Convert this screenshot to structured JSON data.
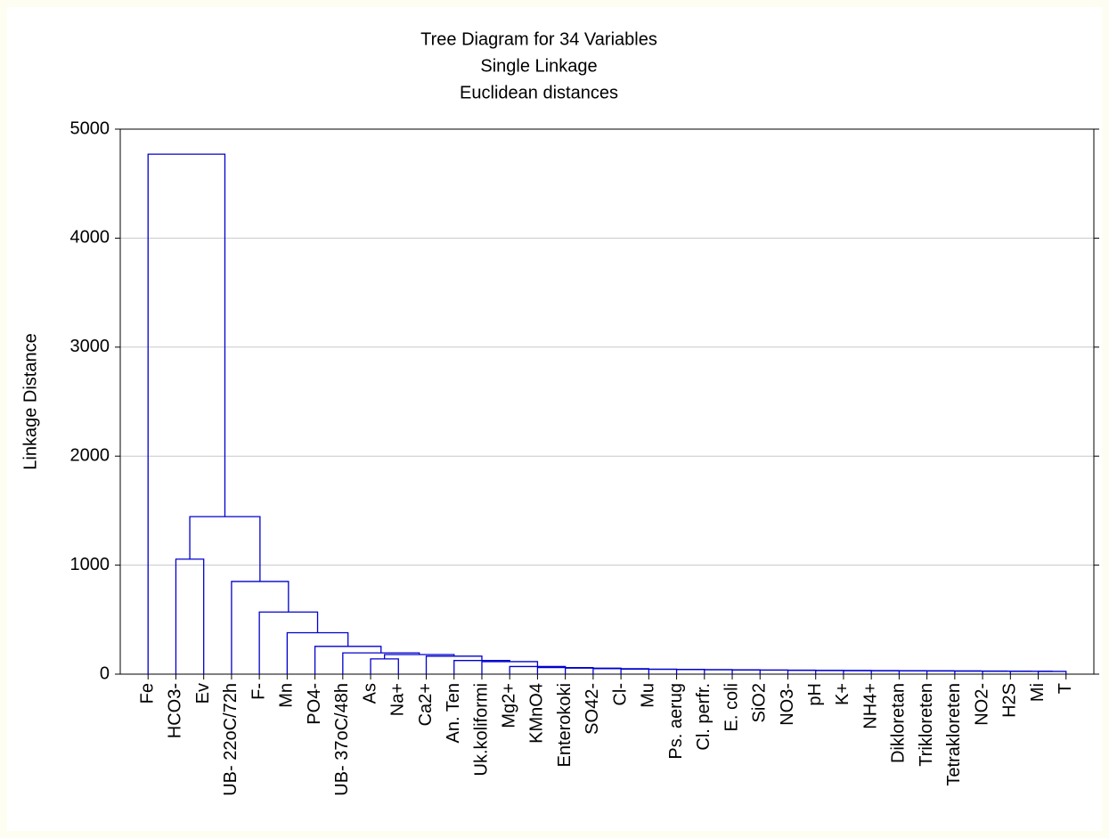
{
  "chart_data": {
    "type": "dendrogram",
    "title": "Tree Diagram for 34 Variables",
    "subtitle": [
      "Single Linkage",
      "Euclidean distances"
    ],
    "y_label": "Linkage Distance",
    "categories": [
      "Fe",
      "HCO3-",
      "Ev",
      "UB- 22oC/72h",
      "F-",
      "Mn",
      "PO4-",
      "UB- 37oC/48h",
      "As",
      "Na+",
      "Ca2+",
      "An. Ten",
      "Uk.koliformi",
      "Mg2+",
      "KMnO4",
      "Enterokoki",
      "SO42-",
      "Cl-",
      "Mu",
      "Ps. aerug",
      "Cl. perfr.",
      "E. coli",
      "SiO2",
      "NO3-",
      "pH",
      "K+",
      "NH4+",
      "Dikloretan",
      "Trikloreten",
      "Tetrakloreten",
      "NO2-",
      "H2S",
      "Mi",
      "T"
    ],
    "merges": [
      {
        "left": 32,
        "right": 33,
        "height": 25
      },
      {
        "left": 31,
        "right": 34,
        "height": 26
      },
      {
        "left": 30,
        "right": 35,
        "height": 27
      },
      {
        "left": 29,
        "right": 36,
        "height": 28
      },
      {
        "left": 28,
        "right": 37,
        "height": 29
      },
      {
        "left": 27,
        "right": 38,
        "height": 30
      },
      {
        "left": 26,
        "right": 39,
        "height": 31
      },
      {
        "left": 25,
        "right": 40,
        "height": 32
      },
      {
        "left": 24,
        "right": 41,
        "height": 33
      },
      {
        "left": 23,
        "right": 42,
        "height": 35
      },
      {
        "left": 22,
        "right": 43,
        "height": 37
      },
      {
        "left": 21,
        "right": 44,
        "height": 38
      },
      {
        "left": 20,
        "right": 45,
        "height": 40
      },
      {
        "left": 19,
        "right": 46,
        "height": 42
      },
      {
        "left": 18,
        "right": 47,
        "height": 44
      },
      {
        "left": 17,
        "right": 48,
        "height": 46
      },
      {
        "left": 16,
        "right": 49,
        "height": 50
      },
      {
        "left": 15,
        "right": 50,
        "height": 55
      },
      {
        "left": 14,
        "right": 51,
        "height": 60
      },
      {
        "left": 13,
        "right": 52,
        "height": 70
      },
      {
        "left": 12,
        "right": 53,
        "height": 115
      },
      {
        "left": 11,
        "right": 54,
        "height": 125
      },
      {
        "left": 10,
        "right": 55,
        "height": 165
      },
      {
        "left": 8,
        "right": 9,
        "height": 140
      },
      {
        "left": 57,
        "right": 56,
        "height": 180
      },
      {
        "left": 7,
        "right": 58,
        "height": 195
      },
      {
        "left": 6,
        "right": 59,
        "height": 255
      },
      {
        "left": 5,
        "right": 60,
        "height": 380
      },
      {
        "left": 4,
        "right": 61,
        "height": 570
      },
      {
        "left": 3,
        "right": 62,
        "height": 850
      },
      {
        "left": 1,
        "right": 2,
        "height": 1055
      },
      {
        "left": 64,
        "right": 63,
        "height": 1445
      },
      {
        "left": 0,
        "right": 65,
        "height": 4770
      }
    ],
    "color": "#0000cc",
    "ylim": [
      0,
      5000
    ],
    "yticks": [
      0,
      1000,
      2000,
      3000,
      4000,
      5000
    ],
    "grid": true
  }
}
